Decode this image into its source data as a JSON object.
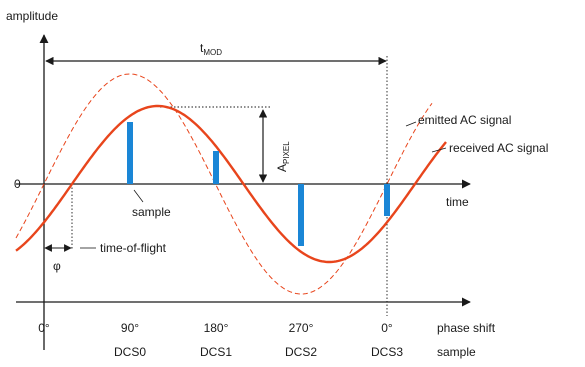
{
  "labels": {
    "y_axis": "amplitude",
    "t_mod_main": "t",
    "t_mod_sub": "MOD",
    "a_pixel_main": "A",
    "a_pixel_sub": "PIXEL",
    "emitted": "emitted AC signal",
    "received": "received AC signal",
    "zero": "0",
    "time": "time",
    "sample": "sample",
    "tof": "time-of-flight",
    "phi": "φ",
    "phase_shift": "phase shift",
    "sample_row": "sample"
  },
  "phase_ticks": [
    "0°",
    "90°",
    "180°",
    "270°",
    "0°"
  ],
  "dcs_ticks": [
    "DCS0",
    "DCS1",
    "DCS2",
    "DCS3"
  ],
  "colors": {
    "received": "#e8451c",
    "emitted": "#e8451c",
    "sample_bar": "#1a86d6",
    "axis": "#1a1a1a"
  }
}
